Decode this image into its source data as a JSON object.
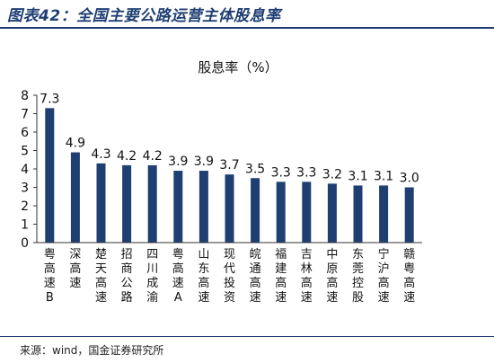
{
  "figure": {
    "title": "图表42：全国主要公路运营主体股息率",
    "source": "来源：wind，国金证券研究所"
  },
  "chart_data": {
    "type": "bar",
    "title": "股息率（%）",
    "xlabel": "",
    "ylabel": "",
    "ylim": [
      0,
      8
    ],
    "yticks": [
      0,
      1,
      2,
      3,
      4,
      5,
      6,
      7,
      8
    ],
    "grid": false,
    "legend": "none",
    "bar_color": "#1f3f73",
    "categories": [
      "粤高速B",
      "深高速",
      "楚天高速",
      "招商公路",
      "四川成渝",
      "粤高速A",
      "山东高速",
      "现代投资",
      "皖通高速",
      "福建高速",
      "吉林高速",
      "中原高速",
      "东莞控股",
      "宁沪高速",
      "赣粤高速"
    ],
    "values": [
      7.3,
      4.9,
      4.3,
      4.2,
      4.2,
      3.9,
      3.9,
      3.7,
      3.5,
      3.3,
      3.3,
      3.2,
      3.1,
      3.1,
      3.0
    ],
    "value_labels": [
      "7.3",
      "4.9",
      "4.3",
      "4.2",
      "4.2",
      "3.9",
      "3.9",
      "3.7",
      "3.5",
      "3.3",
      "3.3",
      "3.2",
      "3.1",
      "3.1",
      "3.0"
    ]
  }
}
